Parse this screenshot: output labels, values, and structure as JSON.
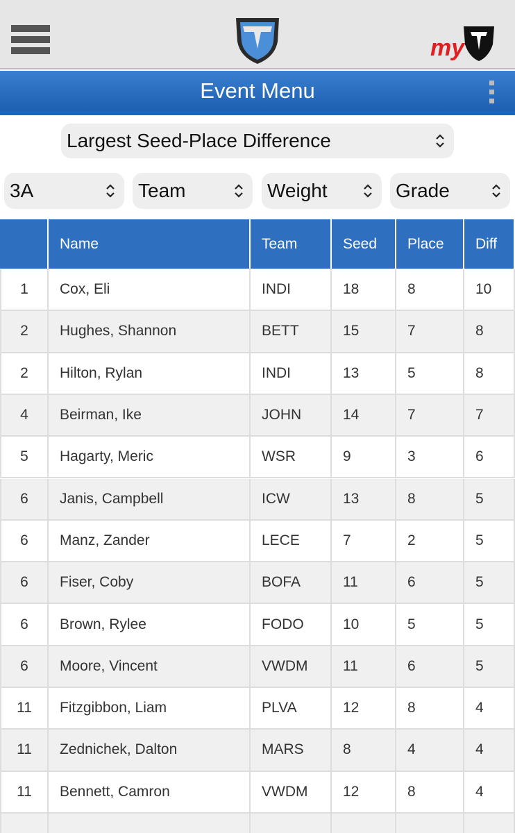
{
  "header": {
    "brand_text": "my",
    "title": "Event Menu"
  },
  "report_select": "Largest Seed-Place Difference",
  "filters": [
    "3A",
    "Team",
    "Weight",
    "Grade"
  ],
  "table": {
    "columns": [
      "Name",
      "Team",
      "Seed",
      "Place",
      "Diff"
    ],
    "rows": [
      [
        "1",
        "Cox, Eli",
        "INDI",
        "18",
        "8",
        "10"
      ],
      [
        "2",
        "Hughes, Shannon",
        "BETT",
        "15",
        "7",
        "8"
      ],
      [
        "2",
        "Hilton, Rylan",
        "INDI",
        "13",
        "5",
        "8"
      ],
      [
        "4",
        "Beirman, Ike",
        "JOHN",
        "14",
        "7",
        "7"
      ],
      [
        "5",
        "Hagarty, Meric",
        "WSR",
        "9",
        "3",
        "6"
      ],
      [
        "6",
        "Janis, Campbell",
        "ICW",
        "13",
        "8",
        "5"
      ],
      [
        "6",
        "Manz, Zander",
        "LECE",
        "7",
        "2",
        "5"
      ],
      [
        "6",
        "Fiser, Coby",
        "BOFA",
        "11",
        "6",
        "5"
      ],
      [
        "6",
        "Brown, Rylee",
        "FODO",
        "10",
        "5",
        "5"
      ],
      [
        "6",
        "Moore, Vincent",
        "VWDM",
        "11",
        "6",
        "5"
      ],
      [
        "11",
        "Fitzgibbon, Liam",
        "PLVA",
        "12",
        "8",
        "4"
      ],
      [
        "11",
        "Zednichek, Dalton",
        "MARS",
        "8",
        "4",
        "4"
      ],
      [
        "11",
        "Bennett, Camron",
        "VWDM",
        "12",
        "8",
        "4"
      ]
    ]
  }
}
